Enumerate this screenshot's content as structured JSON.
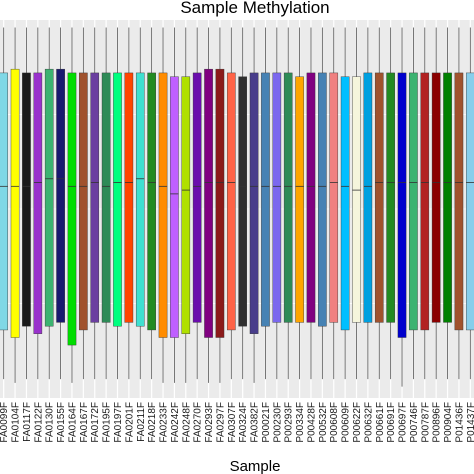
{
  "chart_data": {
    "type": "box",
    "title": "Sample Methylation",
    "xlabel": "Sample",
    "ylabel": "",
    "ylim": [
      0,
      1
    ],
    "grid": true,
    "background": "#ebebeb",
    "samples": [
      {
        "label": "FA0099F",
        "color": "#7fd8e6",
        "q1": 0.18,
        "q3": 0.86,
        "median": 0.56,
        "whisker_low": 0.05,
        "whisker_high": 0.98
      },
      {
        "label": "FA0104F",
        "color": "#ffff00",
        "q1": 0.16,
        "q3": 0.87,
        "median": 0.56,
        "whisker_low": 0.04,
        "whisker_high": 0.98
      },
      {
        "label": "FA0117F",
        "color": "#1a1a1a",
        "q1": 0.19,
        "q3": 0.86,
        "median": 0.56,
        "whisker_low": 0.05,
        "whisker_high": 0.98
      },
      {
        "label": "FA0122F",
        "color": "#9932cc",
        "q1": 0.17,
        "q3": 0.86,
        "median": 0.57,
        "whisker_low": 0.05,
        "whisker_high": 0.98
      },
      {
        "label": "FA0130F",
        "color": "#3cb371",
        "q1": 0.19,
        "q3": 0.87,
        "median": 0.58,
        "whisker_low": 0.05,
        "whisker_high": 0.98
      },
      {
        "label": "FA0155F",
        "color": "#191970",
        "q1": 0.2,
        "q3": 0.87,
        "median": 0.58,
        "whisker_low": 0.05,
        "whisker_high": 0.98
      },
      {
        "label": "FA0164F",
        "color": "#00dd00",
        "q1": 0.14,
        "q3": 0.86,
        "median": 0.56,
        "whisker_low": 0.04,
        "whisker_high": 0.98
      },
      {
        "label": "FA0167F",
        "color": "#a0522d",
        "q1": 0.18,
        "q3": 0.86,
        "median": 0.56,
        "whisker_low": 0.05,
        "whisker_high": 0.98
      },
      {
        "label": "FA0172F",
        "color": "#6b3fa0",
        "q1": 0.2,
        "q3": 0.86,
        "median": 0.57,
        "whisker_low": 0.05,
        "whisker_high": 0.98
      },
      {
        "label": "FA0195F",
        "color": "#2e8b57",
        "q1": 0.2,
        "q3": 0.86,
        "median": 0.56,
        "whisker_low": 0.05,
        "whisker_high": 0.98
      },
      {
        "label": "FA0197F",
        "color": "#00ff7f",
        "q1": 0.19,
        "q3": 0.86,
        "median": 0.57,
        "whisker_low": 0.05,
        "whisker_high": 0.98
      },
      {
        "label": "FA0201F",
        "color": "#ff4500",
        "q1": 0.2,
        "q3": 0.86,
        "median": 0.57,
        "whisker_low": 0.05,
        "whisker_high": 0.98
      },
      {
        "label": "FA0211F",
        "color": "#3fe0d0",
        "q1": 0.19,
        "q3": 0.86,
        "median": 0.58,
        "whisker_low": 0.05,
        "whisker_high": 0.98
      },
      {
        "label": "FA0218F",
        "color": "#228b22",
        "q1": 0.18,
        "q3": 0.86,
        "median": 0.57,
        "whisker_low": 0.05,
        "whisker_high": 0.98
      },
      {
        "label": "FA0233F",
        "color": "#ff8c00",
        "q1": 0.16,
        "q3": 0.86,
        "median": 0.56,
        "whisker_low": 0.04,
        "whisker_high": 0.98
      },
      {
        "label": "FA0242F",
        "color": "#bf5fff",
        "q1": 0.16,
        "q3": 0.85,
        "median": 0.54,
        "whisker_low": 0.04,
        "whisker_high": 0.98
      },
      {
        "label": "FA0248F",
        "color": "#b0e000",
        "q1": 0.17,
        "q3": 0.85,
        "median": 0.55,
        "whisker_low": 0.04,
        "whisker_high": 0.98
      },
      {
        "label": "FA0270F",
        "color": "#6a0dad",
        "q1": 0.2,
        "q3": 0.86,
        "median": 0.56,
        "whisker_low": 0.05,
        "whisker_high": 0.98
      },
      {
        "label": "FA0293F",
        "color": "#800080",
        "q1": 0.16,
        "q3": 0.87,
        "median": 0.57,
        "whisker_low": 0.04,
        "whisker_high": 0.98
      },
      {
        "label": "FA0297F",
        "color": "#8b1a1a",
        "q1": 0.16,
        "q3": 0.87,
        "median": 0.57,
        "whisker_low": 0.04,
        "whisker_high": 0.98
      },
      {
        "label": "FA0307F",
        "color": "#ff6347",
        "q1": 0.18,
        "q3": 0.86,
        "median": 0.57,
        "whisker_low": 0.05,
        "whisker_high": 0.98
      },
      {
        "label": "FA0324F",
        "color": "#2f2f2f",
        "q1": 0.19,
        "q3": 0.85,
        "median": 0.56,
        "whisker_low": 0.05,
        "whisker_high": 0.98
      },
      {
        "label": "FA0382F",
        "color": "#483d8b",
        "q1": 0.17,
        "q3": 0.86,
        "median": 0.56,
        "whisker_low": 0.04,
        "whisker_high": 0.98
      },
      {
        "label": "P00021F",
        "color": "#4682b4",
        "q1": 0.19,
        "q3": 0.86,
        "median": 0.56,
        "whisker_low": 0.05,
        "whisker_high": 0.98
      },
      {
        "label": "P00230F",
        "color": "#7b68ee",
        "q1": 0.2,
        "q3": 0.86,
        "median": 0.56,
        "whisker_low": 0.05,
        "whisker_high": 0.98
      },
      {
        "label": "P00293F",
        "color": "#2e8b57",
        "q1": 0.2,
        "q3": 0.86,
        "median": 0.56,
        "whisker_low": 0.05,
        "whisker_high": 0.98
      },
      {
        "label": "P00334F",
        "color": "#ffa500",
        "q1": 0.2,
        "q3": 0.85,
        "median": 0.56,
        "whisker_low": 0.05,
        "whisker_high": 0.98
      },
      {
        "label": "P00428F",
        "color": "#800080",
        "q1": 0.2,
        "q3": 0.86,
        "median": 0.56,
        "whisker_low": 0.05,
        "whisker_high": 0.98
      },
      {
        "label": "P00532F",
        "color": "#4682b4",
        "q1": 0.19,
        "q3": 0.86,
        "median": 0.56,
        "whisker_low": 0.05,
        "whisker_high": 0.98
      },
      {
        "label": "P00608F",
        "color": "#f08080",
        "q1": 0.2,
        "q3": 0.86,
        "median": 0.57,
        "whisker_low": 0.05,
        "whisker_high": 0.98
      },
      {
        "label": "P00609F",
        "color": "#00bfff",
        "q1": 0.18,
        "q3": 0.85,
        "median": 0.56,
        "whisker_low": 0.05,
        "whisker_high": 0.98
      },
      {
        "label": "P00622F",
        "color": "#f5f5dc",
        "q1": 0.2,
        "q3": 0.85,
        "median": 0.55,
        "whisker_low": 0.05,
        "whisker_high": 0.98
      },
      {
        "label": "P00632F",
        "color": "#00a0e0",
        "q1": 0.2,
        "q3": 0.86,
        "median": 0.56,
        "whisker_low": 0.05,
        "whisker_high": 0.98
      },
      {
        "label": "P00661F",
        "color": "#a0522d",
        "q1": 0.2,
        "q3": 0.86,
        "median": 0.57,
        "whisker_low": 0.05,
        "whisker_high": 0.98
      },
      {
        "label": "P00691F",
        "color": "#228b22",
        "q1": 0.2,
        "q3": 0.86,
        "median": 0.57,
        "whisker_low": 0.05,
        "whisker_high": 0.98
      },
      {
        "label": "P00697F",
        "color": "#0000cd",
        "q1": 0.16,
        "q3": 0.86,
        "median": 0.57,
        "whisker_low": 0.03,
        "whisker_high": 0.98
      },
      {
        "label": "P00746F",
        "color": "#3cb371",
        "q1": 0.18,
        "q3": 0.86,
        "median": 0.57,
        "whisker_low": 0.05,
        "whisker_high": 0.98
      },
      {
        "label": "P00787F",
        "color": "#b22222",
        "q1": 0.18,
        "q3": 0.86,
        "median": 0.57,
        "whisker_low": 0.05,
        "whisker_high": 0.98
      },
      {
        "label": "P00896F",
        "color": "#8b0000",
        "q1": 0.2,
        "q3": 0.86,
        "median": 0.57,
        "whisker_low": 0.05,
        "whisker_high": 0.98
      },
      {
        "label": "P00904F",
        "color": "#008000",
        "q1": 0.2,
        "q3": 0.86,
        "median": 0.57,
        "whisker_low": 0.05,
        "whisker_high": 0.98
      },
      {
        "label": "P01436F",
        "color": "#a0522d",
        "q1": 0.18,
        "q3": 0.86,
        "median": 0.57,
        "whisker_low": 0.05,
        "whisker_high": 0.98
      },
      {
        "label": "P01437F",
        "color": "#87ceeb",
        "q1": 0.18,
        "q3": 0.86,
        "median": 0.57,
        "whisker_low": 0.05,
        "whisker_high": 0.98
      }
    ]
  }
}
